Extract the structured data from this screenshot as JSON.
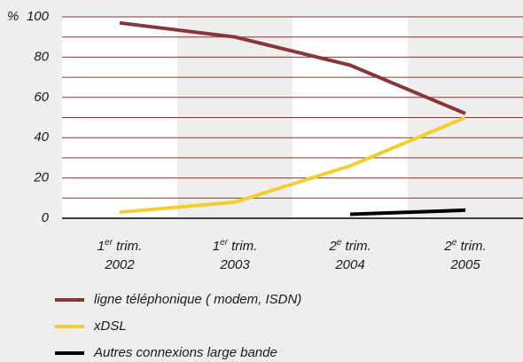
{
  "chart_data": {
    "type": "line",
    "y_label": "%",
    "categories": [
      {
        "num": "1",
        "sup": "er",
        "rest": " trim.",
        "year": "2002"
      },
      {
        "num": "1",
        "sup": "er",
        "rest": " trim.",
        "year": "2003"
      },
      {
        "num": "2",
        "sup": "e",
        "rest": " trim.",
        "year": "2004"
      },
      {
        "num": "2",
        "sup": "e",
        "rest": " trim.",
        "year": "2005"
      }
    ],
    "series": [
      {
        "name": "ligne téléphonique ( modem, ISDN)",
        "color": "#87373a",
        "values": [
          97,
          90,
          76,
          52
        ]
      },
      {
        "name": "xDSL",
        "color": "#f2cf2e",
        "values": [
          3,
          8,
          26,
          50
        ]
      },
      {
        "name": "Autres connexions large bande",
        "color": "#000000",
        "values": [
          null,
          null,
          2,
          4
        ]
      }
    ],
    "ylim": [
      0,
      100
    ],
    "yticks": [
      0,
      20,
      40,
      60,
      80,
      100
    ],
    "minor_yticks": [
      10,
      30,
      50,
      70,
      90
    ],
    "grid": true
  }
}
